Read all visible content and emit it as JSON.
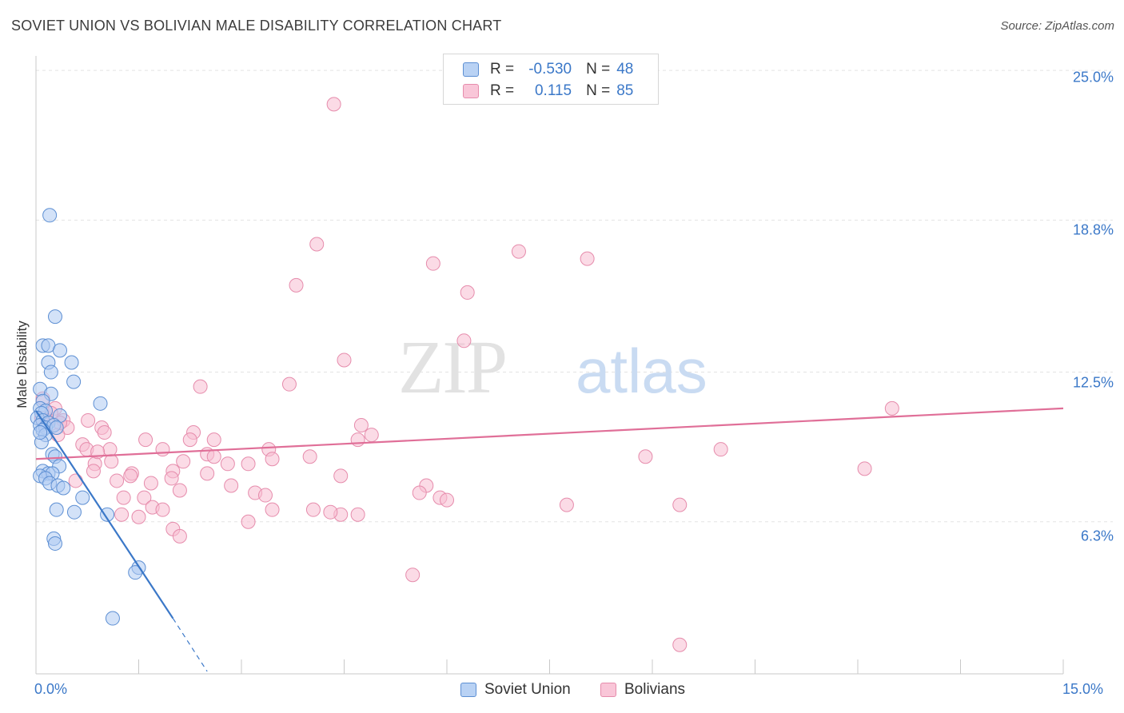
{
  "title": "SOVIET UNION VS BOLIVIAN MALE DISABILITY CORRELATION CHART",
  "source": "Source: ZipAtlas.com",
  "watermark": {
    "zip": "ZIP",
    "atlas": "atlas"
  },
  "colors": {
    "blue": "#3b78c8",
    "pink": "#e06f98",
    "blue_fill": "#aecbf3",
    "pink_fill": "#f7bdd1",
    "grid": "#e3e3e3"
  },
  "legend": [
    {
      "series": "Soviet Union",
      "r_label": "R =",
      "r_value": "-0.530",
      "n_label": "N =",
      "n_value": "48"
    },
    {
      "series": "Bolivians",
      "r_label": "R =",
      "r_value": "0.115",
      "n_label": "N =",
      "n_value": "85"
    }
  ],
  "chart_data": {
    "type": "scatter",
    "title": "SOVIET UNION VS BOLIVIAN MALE DISABILITY CORRELATION CHART",
    "xlabel": "",
    "ylabel": "Male Disability",
    "xlim": [
      0,
      15
    ],
    "ylim": [
      0,
      25.6
    ],
    "x_tick_labels": [
      "0.0%",
      "15.0%"
    ],
    "y_ticks": [
      6.3,
      12.5,
      18.8,
      25.0
    ],
    "y_tick_labels": [
      "6.3%",
      "12.5%",
      "18.8%",
      "25.0%"
    ],
    "grid": true,
    "legend_position": "top-center",
    "series": [
      {
        "name": "Soviet Union",
        "color": "#3b78c8",
        "r": -0.53,
        "n": 48,
        "trend": {
          "x_start": 0.0,
          "y_start": 10.9,
          "x_solid_end": 2.0,
          "y_solid_end": 2.3,
          "x_dashed_end": 2.5,
          "y_dashed_end": 0.1
        },
        "points": [
          [
            0.2,
            19.0
          ],
          [
            0.28,
            14.8
          ],
          [
            0.1,
            13.6
          ],
          [
            0.18,
            13.6
          ],
          [
            0.35,
            13.4
          ],
          [
            0.52,
            12.9
          ],
          [
            0.18,
            12.9
          ],
          [
            0.22,
            12.5
          ],
          [
            0.55,
            12.1
          ],
          [
            0.06,
            11.8
          ],
          [
            0.22,
            11.6
          ],
          [
            0.94,
            11.2
          ],
          [
            0.1,
            11.3
          ],
          [
            0.06,
            11.0
          ],
          [
            0.14,
            10.9
          ],
          [
            0.08,
            10.8
          ],
          [
            0.35,
            10.7
          ],
          [
            0.02,
            10.6
          ],
          [
            0.1,
            10.5
          ],
          [
            0.18,
            10.4
          ],
          [
            0.06,
            10.3
          ],
          [
            0.14,
            10.2
          ],
          [
            0.26,
            10.3
          ],
          [
            0.3,
            10.2
          ],
          [
            0.1,
            10.1
          ],
          [
            0.14,
            9.9
          ],
          [
            0.08,
            9.6
          ],
          [
            0.24,
            9.1
          ],
          [
            0.28,
            9.0
          ],
          [
            0.34,
            8.6
          ],
          [
            0.1,
            8.4
          ],
          [
            0.18,
            8.3
          ],
          [
            0.24,
            8.3
          ],
          [
            0.06,
            8.2
          ],
          [
            0.14,
            8.1
          ],
          [
            0.2,
            7.9
          ],
          [
            0.32,
            7.8
          ],
          [
            0.4,
            7.7
          ],
          [
            0.68,
            7.3
          ],
          [
            0.3,
            6.8
          ],
          [
            0.56,
            6.7
          ],
          [
            1.04,
            6.6
          ],
          [
            0.26,
            5.6
          ],
          [
            0.28,
            5.4
          ],
          [
            1.5,
            4.4
          ],
          [
            1.45,
            4.2
          ],
          [
            1.12,
            2.3
          ],
          [
            0.06,
            10.0
          ]
        ]
      },
      {
        "name": "Bolivians",
        "color": "#e06f98",
        "r": 0.115,
        "n": 85,
        "trend": {
          "x_start": 0.0,
          "y_start": 8.9,
          "x_end": 15.0,
          "y_end": 11.0
        },
        "points": [
          [
            4.35,
            23.6
          ],
          [
            4.1,
            17.8
          ],
          [
            5.8,
            17.0
          ],
          [
            7.05,
            17.5
          ],
          [
            8.05,
            17.2
          ],
          [
            3.8,
            16.1
          ],
          [
            6.3,
            15.8
          ],
          [
            6.25,
            13.8
          ],
          [
            4.5,
            13.0
          ],
          [
            3.7,
            12.0
          ],
          [
            2.4,
            11.9
          ],
          [
            0.1,
            11.4
          ],
          [
            0.28,
            11.0
          ],
          [
            0.22,
            10.8
          ],
          [
            0.08,
            10.6
          ],
          [
            0.16,
            10.5
          ],
          [
            0.4,
            10.5
          ],
          [
            0.76,
            10.5
          ],
          [
            0.46,
            10.2
          ],
          [
            0.96,
            10.2
          ],
          [
            0.32,
            9.9
          ],
          [
            4.75,
            10.3
          ],
          [
            12.5,
            11.0
          ],
          [
            2.3,
            10.0
          ],
          [
            4.9,
            9.9
          ],
          [
            1.6,
            9.7
          ],
          [
            2.25,
            9.7
          ],
          [
            2.6,
            9.7
          ],
          [
            4.7,
            9.7
          ],
          [
            0.68,
            9.5
          ],
          [
            1.08,
            9.3
          ],
          [
            0.74,
            9.3
          ],
          [
            3.4,
            9.3
          ],
          [
            1.1,
            8.8
          ],
          [
            1.85,
            9.3
          ],
          [
            2.5,
            9.1
          ],
          [
            2.15,
            8.8
          ],
          [
            2.6,
            9.0
          ],
          [
            3.45,
            8.9
          ],
          [
            4.0,
            9.0
          ],
          [
            8.9,
            9.0
          ],
          [
            10.0,
            9.3
          ],
          [
            0.86,
            8.7
          ],
          [
            2.8,
            8.7
          ],
          [
            3.1,
            8.7
          ],
          [
            12.1,
            8.5
          ],
          [
            0.84,
            8.4
          ],
          [
            1.4,
            8.3
          ],
          [
            2.0,
            8.4
          ],
          [
            2.5,
            8.3
          ],
          [
            1.38,
            8.2
          ],
          [
            1.98,
            8.1
          ],
          [
            4.45,
            8.2
          ],
          [
            0.58,
            8.0
          ],
          [
            1.18,
            8.0
          ],
          [
            1.68,
            7.9
          ],
          [
            2.85,
            7.8
          ],
          [
            5.7,
            7.8
          ],
          [
            5.6,
            7.5
          ],
          [
            2.1,
            7.6
          ],
          [
            3.2,
            7.5
          ],
          [
            3.35,
            7.4
          ],
          [
            1.28,
            7.3
          ],
          [
            1.58,
            7.3
          ],
          [
            5.9,
            7.3
          ],
          [
            6.0,
            7.2
          ],
          [
            1.7,
            6.9
          ],
          [
            1.85,
            6.8
          ],
          [
            3.45,
            6.8
          ],
          [
            4.05,
            6.8
          ],
          [
            7.75,
            7.0
          ],
          [
            9.4,
            7.0
          ],
          [
            1.25,
            6.6
          ],
          [
            1.5,
            6.5
          ],
          [
            4.45,
            6.6
          ],
          [
            4.7,
            6.6
          ],
          [
            3.1,
            6.3
          ],
          [
            2.0,
            6.0
          ],
          [
            2.1,
            5.7
          ],
          [
            5.5,
            4.1
          ],
          [
            9.4,
            1.2
          ],
          [
            0.35,
            10.4
          ],
          [
            1.0,
            10.0
          ],
          [
            4.3,
            6.7
          ],
          [
            0.9,
            9.2
          ]
        ]
      }
    ]
  }
}
